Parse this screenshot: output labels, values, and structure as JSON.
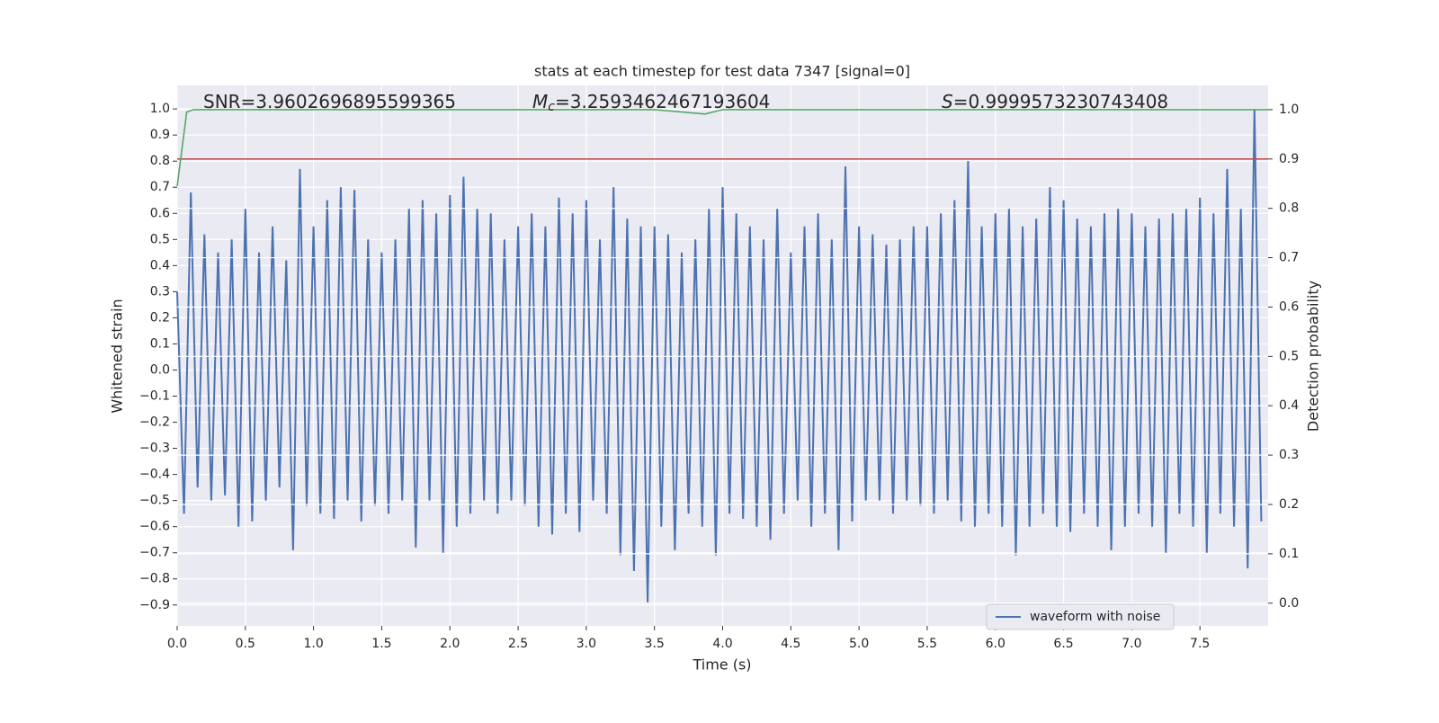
{
  "chart_data": {
    "type": "line",
    "title": "stats at each timestep for test data 7347 [signal=0]",
    "xlabel": "Time (s)",
    "ylabel": "Whitened strain",
    "y2label": "Detection probability",
    "annotations": [
      {
        "text": "SNR=3.9602696895599365"
      },
      {
        "symbol": "M",
        "subscript": "c",
        "text": "=3.2593462467193604"
      },
      {
        "symbol": "S",
        "text": "=0.9999573230743408"
      }
    ],
    "xlim": [
      0,
      8
    ],
    "ylim": [
      -0.98,
      1.09
    ],
    "y2lim": [
      -0.046,
      1.049
    ],
    "xticks": [
      {
        "value": 0,
        "label": "0.0"
      },
      0.5,
      {
        "value": 1,
        "label": "1.0"
      },
      1.5,
      {
        "value": 2,
        "label": "2.0"
      },
      2.5,
      {
        "value": 3,
        "label": "3.0"
      },
      3.5,
      {
        "value": 4,
        "label": "4.0"
      },
      4.5,
      {
        "value": 5,
        "label": "5.0"
      },
      5.5,
      {
        "value": 6,
        "label": "6.0"
      },
      6.5,
      {
        "value": 7,
        "label": "7.0"
      },
      7.5
    ],
    "yticks": [
      {
        "value": -0.9,
        "label": "−0.9"
      },
      {
        "value": -0.8,
        "label": "−0.8"
      },
      {
        "value": -0.7,
        "label": "−0.7"
      },
      {
        "value": -0.6,
        "label": "−0.6"
      },
      {
        "value": -0.5,
        "label": "−0.5"
      },
      {
        "value": -0.4,
        "label": "−0.4"
      },
      {
        "value": -0.3,
        "label": "−0.3"
      },
      {
        "value": -0.2,
        "label": "−0.2"
      },
      {
        "value": -0.1,
        "label": "−0.1"
      },
      {
        "value": 0,
        "label": "0.0"
      },
      0.1,
      0.2,
      0.3,
      0.4,
      0.5,
      0.6,
      0.7,
      0.8,
      0.9,
      {
        "value": 1,
        "label": "1.0"
      }
    ],
    "y2ticks": [
      {
        "value": 0,
        "label": "0.0"
      },
      0.1,
      0.2,
      0.3,
      0.4,
      0.5,
      0.6,
      0.7,
      0.8,
      0.9,
      {
        "value": 1,
        "label": "1.0"
      }
    ],
    "grid": true,
    "legend": "lower right",
    "series": [
      {
        "name": "waveform with noise",
        "color": "#4c72b0",
        "x": [
          0,
          0.05,
          0.1,
          0.15,
          0.2,
          0.25,
          0.3,
          0.35,
          0.4,
          0.45,
          0.5,
          0.55,
          0.6,
          0.65,
          0.7,
          0.75,
          0.8,
          0.85,
          0.9,
          0.95,
          1,
          1.05,
          1.1,
          1.15,
          1.2,
          1.25,
          1.3,
          1.35,
          1.4,
          1.45,
          1.5,
          1.55,
          1.6,
          1.65,
          1.7,
          1.75,
          1.8,
          1.85,
          1.9,
          1.95,
          2,
          2.05,
          2.1,
          2.15,
          2.2,
          2.25,
          2.3,
          2.35,
          2.4,
          2.45,
          2.5,
          2.55,
          2.6,
          2.65,
          2.7,
          2.75,
          2.8,
          2.85,
          2.9,
          2.95,
          3,
          3.05,
          3.1,
          3.15,
          3.2,
          3.25,
          3.3,
          3.35,
          3.4,
          3.45,
          3.5,
          3.55,
          3.6,
          3.65,
          3.7,
          3.75,
          3.8,
          3.85,
          3.9,
          3.95,
          4,
          4.05,
          4.1,
          4.15,
          4.2,
          4.25,
          4.3,
          4.35,
          4.4,
          4.45,
          4.5,
          4.55,
          4.6,
          4.65,
          4.7,
          4.75,
          4.8,
          4.85,
          4.9,
          4.95,
          5,
          5.05,
          5.1,
          5.15,
          5.2,
          5.25,
          5.3,
          5.35,
          5.4,
          5.45,
          5.5,
          5.55,
          5.6,
          5.65,
          5.7,
          5.75,
          5.8,
          5.85,
          5.9,
          5.95,
          6,
          6.05,
          6.1,
          6.15,
          6.2,
          6.25,
          6.3,
          6.35,
          6.4,
          6.45,
          6.5,
          6.55,
          6.6,
          6.65,
          6.7,
          6.75,
          6.8,
          6.85,
          6.9,
          6.95,
          7,
          7.05,
          7.1,
          7.15,
          7.2,
          7.25,
          7.3,
          7.35,
          7.4,
          7.45,
          7.5,
          7.55,
          7.6,
          7.65,
          7.7,
          7.75,
          7.8,
          7.85,
          7.9,
          7.95
        ],
        "values": [
          0.3,
          -0.55,
          0.68,
          -0.45,
          0.52,
          -0.5,
          0.45,
          -0.48,
          0.5,
          -0.6,
          0.62,
          -0.58,
          0.45,
          -0.5,
          0.55,
          -0.45,
          0.42,
          -0.69,
          0.77,
          -0.52,
          0.55,
          -0.55,
          0.65,
          -0.57,
          0.7,
          -0.5,
          0.69,
          -0.58,
          0.5,
          -0.52,
          0.45,
          -0.55,
          0.5,
          -0.5,
          0.62,
          -0.68,
          0.65,
          -0.5,
          0.6,
          -0.7,
          0.67,
          -0.6,
          0.74,
          -0.55,
          0.62,
          -0.5,
          0.6,
          -0.55,
          0.5,
          -0.5,
          0.55,
          -0.52,
          0.6,
          -0.6,
          0.55,
          -0.63,
          0.66,
          -0.55,
          0.6,
          -0.62,
          0.65,
          -0.5,
          0.5,
          -0.55,
          0.7,
          -0.71,
          0.58,
          -0.77,
          0.55,
          -0.89,
          0.55,
          -0.6,
          0.52,
          -0.69,
          0.45,
          -0.55,
          0.5,
          -0.6,
          0.62,
          -0.71,
          0.7,
          -0.55,
          0.6,
          -0.57,
          0.55,
          -0.6,
          0.5,
          -0.65,
          0.62,
          -0.55,
          0.45,
          -0.5,
          0.55,
          -0.6,
          0.6,
          -0.55,
          0.5,
          -0.69,
          0.78,
          -0.58,
          0.55,
          -0.5,
          0.52,
          -0.5,
          0.48,
          -0.55,
          0.5,
          -0.5,
          0.55,
          -0.52,
          0.55,
          -0.55,
          0.6,
          -0.5,
          0.65,
          -0.58,
          0.8,
          -0.6,
          0.55,
          -0.55,
          0.6,
          -0.6,
          0.62,
          -0.71,
          0.55,
          -0.6,
          0.58,
          -0.55,
          0.7,
          -0.6,
          0.65,
          -0.62,
          0.58,
          -0.55,
          0.55,
          -0.6,
          0.6,
          -0.69,
          0.62,
          -0.6,
          0.6,
          -0.55,
          0.55,
          -0.6,
          0.58,
          -0.7,
          0.6,
          -0.55,
          0.62,
          -0.6,
          0.66,
          -0.7,
          0.6,
          -0.55,
          0.77,
          -0.6,
          0.62,
          -0.76,
          1.0,
          -0.58
        ]
      },
      {
        "color": "#c44e52",
        "axis": "y2",
        "x": [
          0,
          8
        ],
        "values": [
          0.9,
          0.9
        ]
      },
      {
        "color": "#55a868",
        "axis": "y2",
        "x": [
          0,
          0.07,
          0.12,
          3.5,
          3.87,
          4.0,
          8.0
        ],
        "values": [
          0.845,
          0.995,
          1.0,
          1.0,
          0.991,
          1.0,
          1.0
        ]
      }
    ]
  }
}
